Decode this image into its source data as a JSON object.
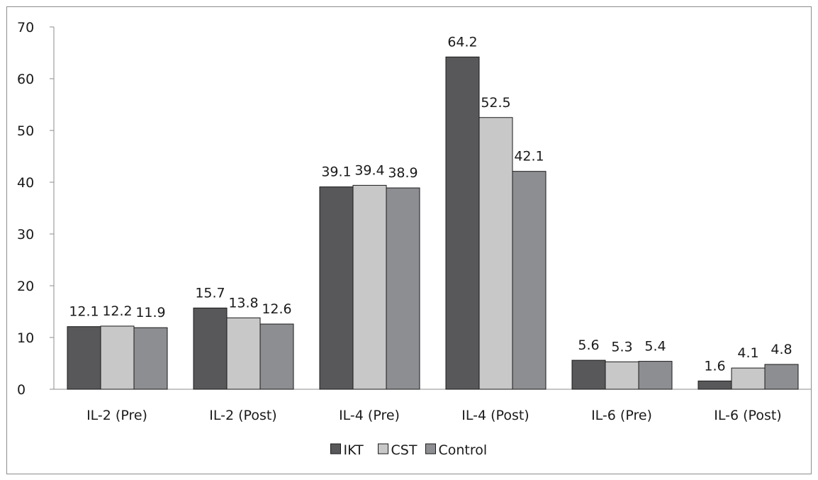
{
  "chart_data": {
    "type": "bar",
    "title": "",
    "xlabel": "",
    "ylabel": "",
    "ylim": [
      0,
      70
    ],
    "yticks": [
      0,
      10,
      20,
      30,
      40,
      50,
      60,
      70
    ],
    "grid": false,
    "legend_position": "bottom",
    "categories": [
      "IL-2 (Pre)",
      "IL-2 (Post)",
      "IL-4 (Pre)",
      "IL-4 (Post)",
      "IL-6 (Pre)",
      "IL-6 (Post)"
    ],
    "series": [
      {
        "name": "IKT",
        "color": "#58585a",
        "values": [
          12.1,
          15.7,
          39.1,
          64.2,
          5.6,
          1.6
        ],
        "labels": [
          "12.1",
          "15.7",
          "39.1",
          "64.2",
          "5.6",
          "1.6"
        ]
      },
      {
        "name": "CST",
        "color": "#c8c8c8",
        "values": [
          12.2,
          13.8,
          39.4,
          52.5,
          5.3,
          4.1
        ],
        "labels": [
          "12.2",
          "13.8",
          "39.4",
          "52.5",
          "5.3",
          "4.1"
        ]
      },
      {
        "name": "Control",
        "color": "#8d8e91",
        "values": [
          11.9,
          12.6,
          38.9,
          42.1,
          5.4,
          4.8
        ],
        "labels": [
          "11.9",
          "12.6",
          "38.9",
          "42.1",
          "5.4",
          "4.8"
        ]
      }
    ]
  }
}
